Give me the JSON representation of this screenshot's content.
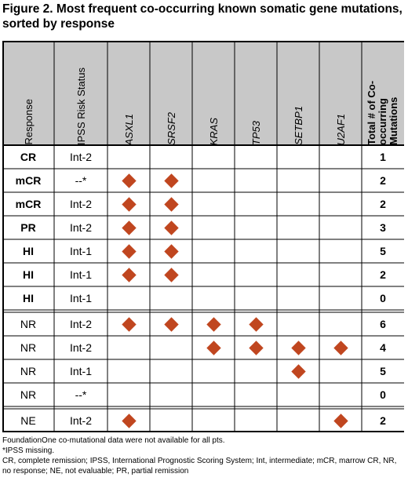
{
  "title": "Figure 2. Most frequent co-occurring known somatic gene mutations, sorted by response",
  "columns": [
    "Response",
    "IPSS Risk Status",
    "ASXL1",
    "SRSF2",
    "KRAS",
    "TP53",
    "SETBP1",
    "U2AF1",
    "Total # of Co-occurring Mutations"
  ],
  "italic_columns": [
    2,
    3,
    4,
    5,
    6,
    7
  ],
  "rows": [
    {
      "response": "CR",
      "bold": true,
      "ipss": "Int-2",
      "mut": [
        0,
        0,
        0,
        0,
        0,
        0
      ],
      "total": "1"
    },
    {
      "response": "mCR",
      "bold": true,
      "ipss": "--*",
      "mut": [
        1,
        1,
        0,
        0,
        0,
        0
      ],
      "total": "2"
    },
    {
      "response": "mCR",
      "bold": true,
      "ipss": "Int-2",
      "mut": [
        1,
        1,
        0,
        0,
        0,
        0
      ],
      "total": "2"
    },
    {
      "response": "PR",
      "bold": true,
      "ipss": "Int-2",
      "mut": [
        1,
        1,
        0,
        0,
        0,
        0
      ],
      "total": "3"
    },
    {
      "response": "HI",
      "bold": true,
      "ipss": "Int-1",
      "mut": [
        1,
        1,
        0,
        0,
        0,
        0
      ],
      "total": "5"
    },
    {
      "response": "HI",
      "bold": true,
      "ipss": "Int-1",
      "mut": [
        1,
        1,
        0,
        0,
        0,
        0
      ],
      "total": "2"
    },
    {
      "response": "HI",
      "bold": true,
      "ipss": "Int-1",
      "mut": [
        0,
        0,
        0,
        0,
        0,
        0
      ],
      "total": "0"
    },
    {
      "response": "NR",
      "bold": false,
      "ipss": "Int-2",
      "mut": [
        1,
        1,
        1,
        1,
        0,
        0
      ],
      "total": "6"
    },
    {
      "response": "NR",
      "bold": false,
      "ipss": "Int-2",
      "mut": [
        0,
        0,
        1,
        1,
        1,
        1
      ],
      "total": "4"
    },
    {
      "response": "NR",
      "bold": false,
      "ipss": "Int-1",
      "mut": [
        0,
        0,
        0,
        0,
        1,
        0
      ],
      "total": "5"
    },
    {
      "response": "NR",
      "bold": false,
      "ipss": "--*",
      "mut": [
        0,
        0,
        0,
        0,
        0,
        0
      ],
      "total": "0"
    },
    {
      "response": "NE",
      "bold": false,
      "ipss": "Int-2",
      "mut": [
        1,
        0,
        0,
        0,
        0,
        1
      ],
      "total": "2"
    }
  ],
  "footnotes": [
    "FoundationOne co-mutational data were not available for all pts.",
    "*IPSS missing.",
    "CR, complete remission; IPSS, International Prognostic Scoring System; Int, intermediate; mCR, marrow CR, NR, no response; NE, not evaluable; PR, partial remission"
  ],
  "colors": {
    "header_bg": "#c8c8c8",
    "diamond": "#c0461f",
    "border": "#000000"
  }
}
